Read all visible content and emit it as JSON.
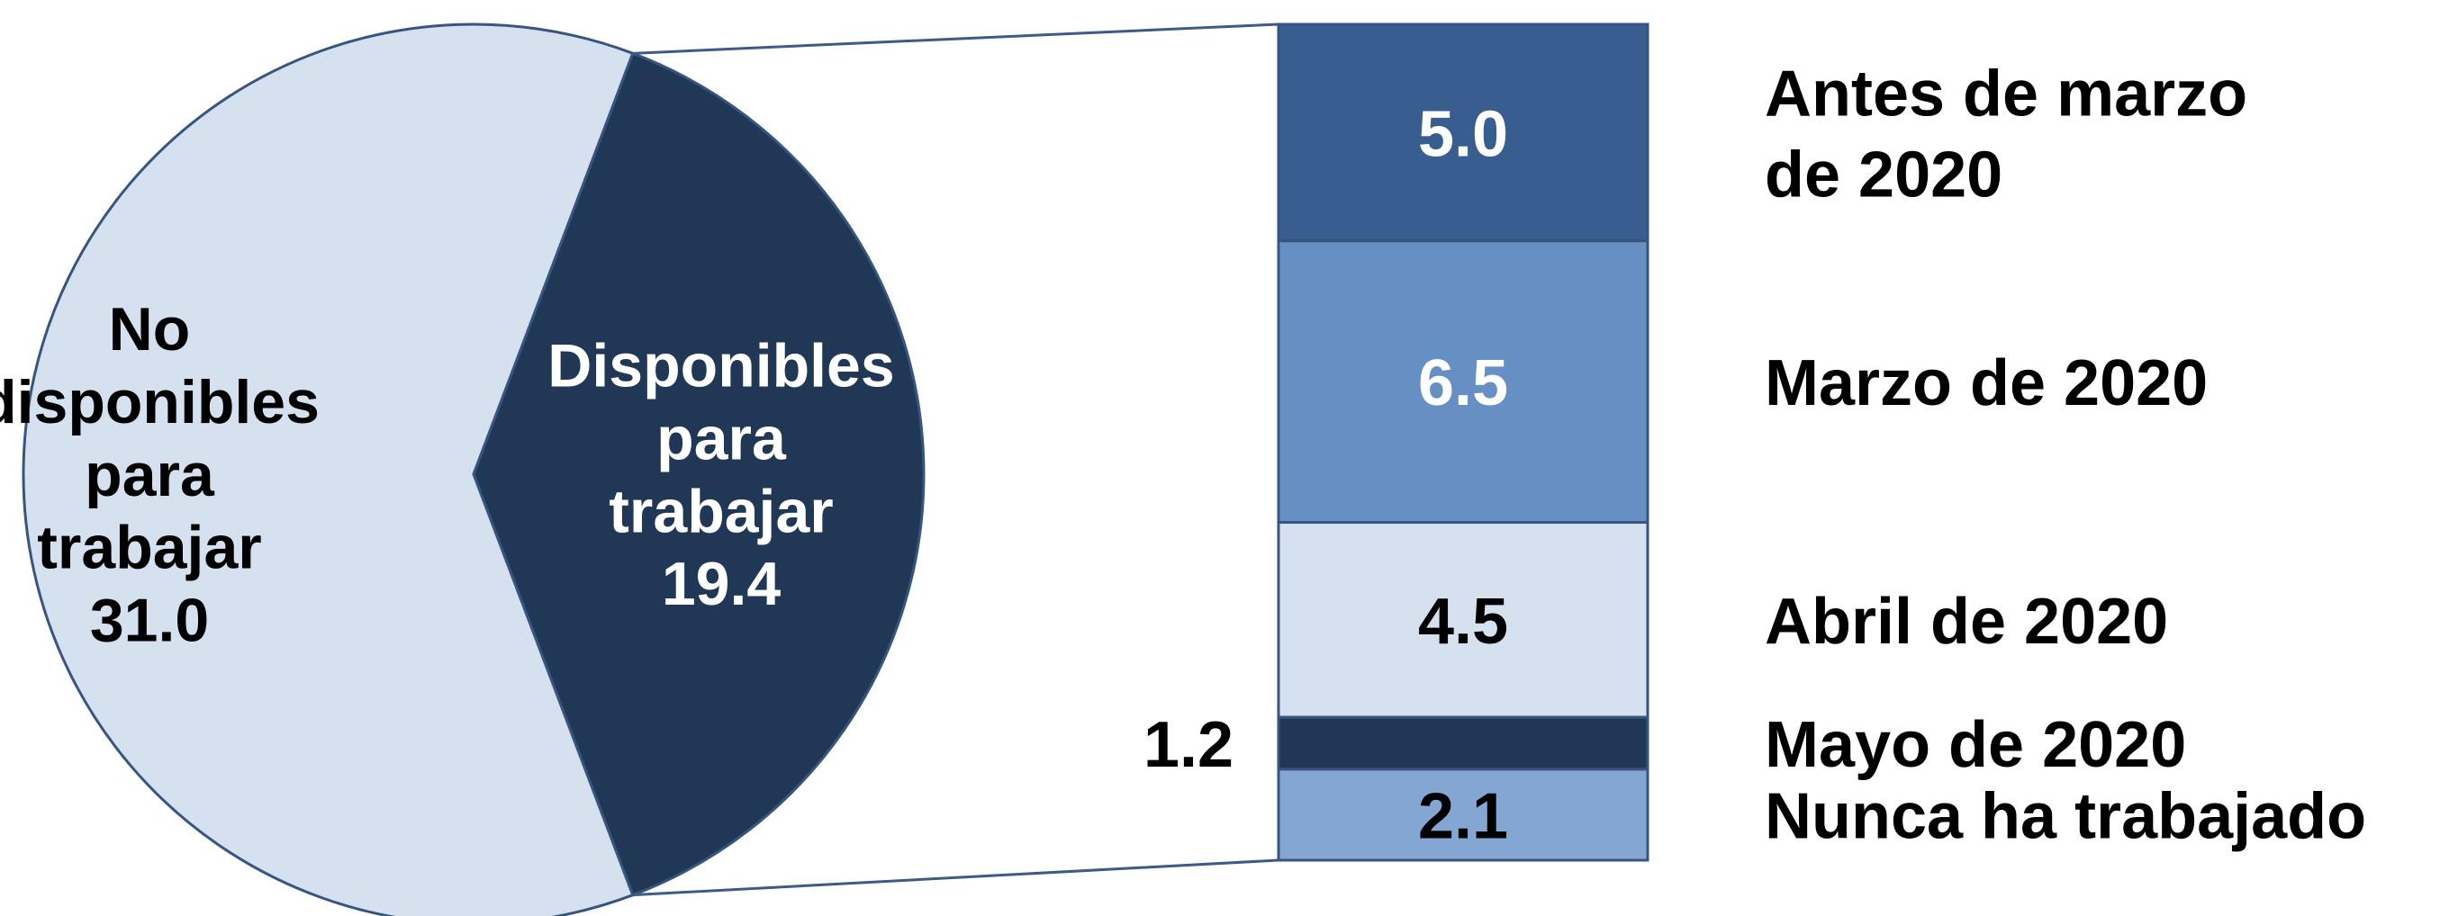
{
  "chart_data": {
    "type": "bar-of-pie",
    "pie": {
      "slices": [
        {
          "label_lines": [
            "No",
            "disponibles",
            "para",
            "trabajar"
          ],
          "value": 31.0,
          "value_text": "31.0",
          "color": "#d5e1ef",
          "text_color": "#000000"
        },
        {
          "label_lines": [
            "Disponibles",
            "para",
            "trabajar"
          ],
          "value": 19.4,
          "value_text": "19.4",
          "color": "#213756",
          "text_color": "#ffffff"
        }
      ]
    },
    "bar": {
      "segments": [
        {
          "label": "Antes de marzo de 2020",
          "label_lines": [
            "Antes de marzo",
            "de 2020"
          ],
          "value": 5.0,
          "value_text": "5.0",
          "color": "#385e8f",
          "text_color": "#ffffff"
        },
        {
          "label": "Marzo de 2020",
          "label_lines": [
            "Marzo de 2020"
          ],
          "value": 6.5,
          "value_text": "6.5",
          "color": "#6690c4",
          "text_color": "#ffffff"
        },
        {
          "label": "Abril de 2020",
          "label_lines": [
            "Abril de 2020"
          ],
          "value": 4.5,
          "value_text": "4.5",
          "color": "#d5e1ef",
          "text_color": "#000000"
        },
        {
          "label": "Mayo de 2020",
          "label_lines": [
            "Mayo de 2020"
          ],
          "value": 1.2,
          "value_text": "1.2",
          "color": "#213756",
          "text_color": "#000000",
          "value_outside": true
        },
        {
          "label": "Nunca ha trabajado",
          "label_lines": [
            "Nunca ha trabajado"
          ],
          "value": 2.1,
          "value_text": "2.1",
          "color": "#84a6d2",
          "text_color": "#000000"
        }
      ]
    },
    "colors": {
      "outline": "#37557f",
      "connector": "#3d5b85"
    }
  }
}
